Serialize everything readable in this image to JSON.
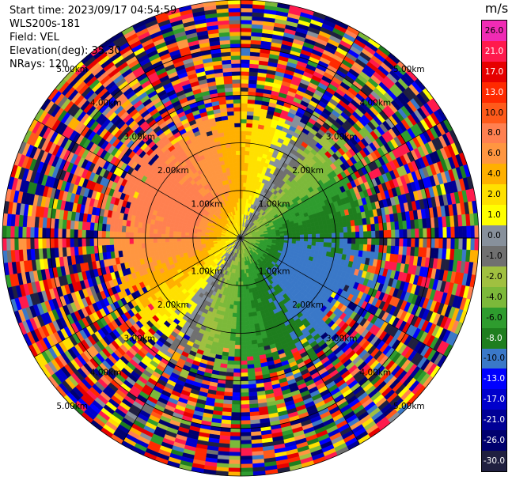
{
  "info": {
    "start_time": "Start time: 2023/09/17 04:54:59",
    "instrument": "WLS200s-181",
    "field": "Field: VEL",
    "elevation": "Elevation(deg): 35.30",
    "nrays": "NRays: 120"
  },
  "colorbar": {
    "title": "m/s",
    "ticks": [
      "26.0",
      "21.0",
      "17.0",
      "13.0",
      "10.0",
      "8.0",
      "6.0",
      "4.0",
      "2.0",
      "1.0",
      "0.0",
      "-1.0",
      "-2.0",
      "-4.0",
      "-6.0",
      "-8.0",
      "-10.0",
      "-13.0",
      "-17.0",
      "-21.0",
      "-26.0",
      "-30.0"
    ],
    "colors": [
      "#f02bb4",
      "#ff1a4d",
      "#e60000",
      "#ff2a00",
      "#ff5a1a",
      "#ff8050",
      "#ff9640",
      "#ffb000",
      "#ffe000",
      "#ffff00",
      "#87909b",
      "#707070",
      "#a0c040",
      "#7cb93a",
      "#2e9c2e",
      "#1e7e1e",
      "#3a78c8",
      "#0000ff",
      "#0000cc",
      "#000096",
      "#00006e",
      "#202040"
    ]
  },
  "chart_data": {
    "type": "ppi",
    "field": "VEL",
    "units": "m/s",
    "n_rays": 120,
    "max_range_km": 5.0,
    "range_ring_labels": [
      "1.00km",
      "2.00km",
      "3.00km",
      "4.00km",
      "5.00km"
    ],
    "vmin": -30.0,
    "vmax": 26.0,
    "coherent_range_km": 2.2,
    "wind_pattern": {
      "description": "toward (positive) in north-west sector, away (negative) in south-south-east sector",
      "positive_center_azimuth_deg": 300,
      "peak_speed_ms": 9.0
    }
  }
}
